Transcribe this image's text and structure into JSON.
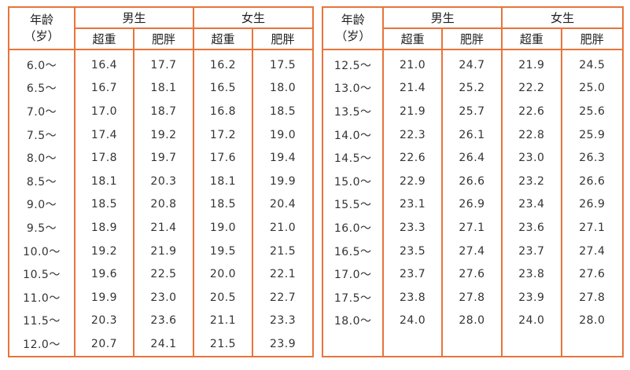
{
  "header": {
    "age_line1": "年龄",
    "age_line2": "（岁）",
    "male": "男生",
    "female": "女生",
    "overweight": "超重",
    "obese": "肥胖"
  },
  "left_rows": [
    [
      "6.0～",
      "16.4",
      "17.7",
      "16.2",
      "17.5"
    ],
    [
      "6.5～",
      "16.7",
      "18.1",
      "16.5",
      "18.0"
    ],
    [
      "7.0～",
      "17.0",
      "18.7",
      "16.8",
      "18.5"
    ],
    [
      "7.5～",
      "17.4",
      "19.2",
      "17.2",
      "19.0"
    ],
    [
      "8.0～",
      "17.8",
      "19.7",
      "17.6",
      "19.4"
    ],
    [
      "8.5～",
      "18.1",
      "20.3",
      "18.1",
      "19.9"
    ],
    [
      "9.0～",
      "18.5",
      "20.8",
      "18.5",
      "20.4"
    ],
    [
      "9.5～",
      "18.9",
      "21.4",
      "19.0",
      "21.0"
    ],
    [
      "10.0～",
      "19.2",
      "21.9",
      "19.5",
      "21.5"
    ],
    [
      "10.5～",
      "19.6",
      "22.5",
      "20.0",
      "22.1"
    ],
    [
      "11.0～",
      "19.9",
      "23.0",
      "20.5",
      "22.7"
    ],
    [
      "11.5～",
      "20.3",
      "23.6",
      "21.1",
      "23.3"
    ],
    [
      "12.0～",
      "20.7",
      "24.1",
      "21.5",
      "23.9"
    ]
  ],
  "right_rows": [
    [
      "12.5～",
      "21.0",
      "24.7",
      "21.9",
      "24.5"
    ],
    [
      "13.0～",
      "21.4",
      "25.2",
      "22.2",
      "25.0"
    ],
    [
      "13.5～",
      "21.9",
      "25.7",
      "22.6",
      "25.6"
    ],
    [
      "14.0～",
      "22.3",
      "26.1",
      "22.8",
      "25.9"
    ],
    [
      "14.5～",
      "22.6",
      "26.4",
      "23.0",
      "26.3"
    ],
    [
      "15.0～",
      "22.9",
      "26.6",
      "23.2",
      "26.6"
    ],
    [
      "15.5～",
      "23.1",
      "26.9",
      "23.4",
      "26.9"
    ],
    [
      "16.0～",
      "23.3",
      "27.1",
      "23.6",
      "27.1"
    ],
    [
      "16.5～",
      "23.5",
      "27.4",
      "23.7",
      "27.4"
    ],
    [
      "17.0～",
      "23.7",
      "27.6",
      "23.8",
      "27.6"
    ],
    [
      "17.5～",
      "23.8",
      "27.8",
      "23.9",
      "27.8"
    ],
    [
      "18.0～",
      "24.0",
      "28.0",
      "24.0",
      "28.0"
    ],
    [
      "",
      "",
      "",
      "",
      ""
    ]
  ]
}
